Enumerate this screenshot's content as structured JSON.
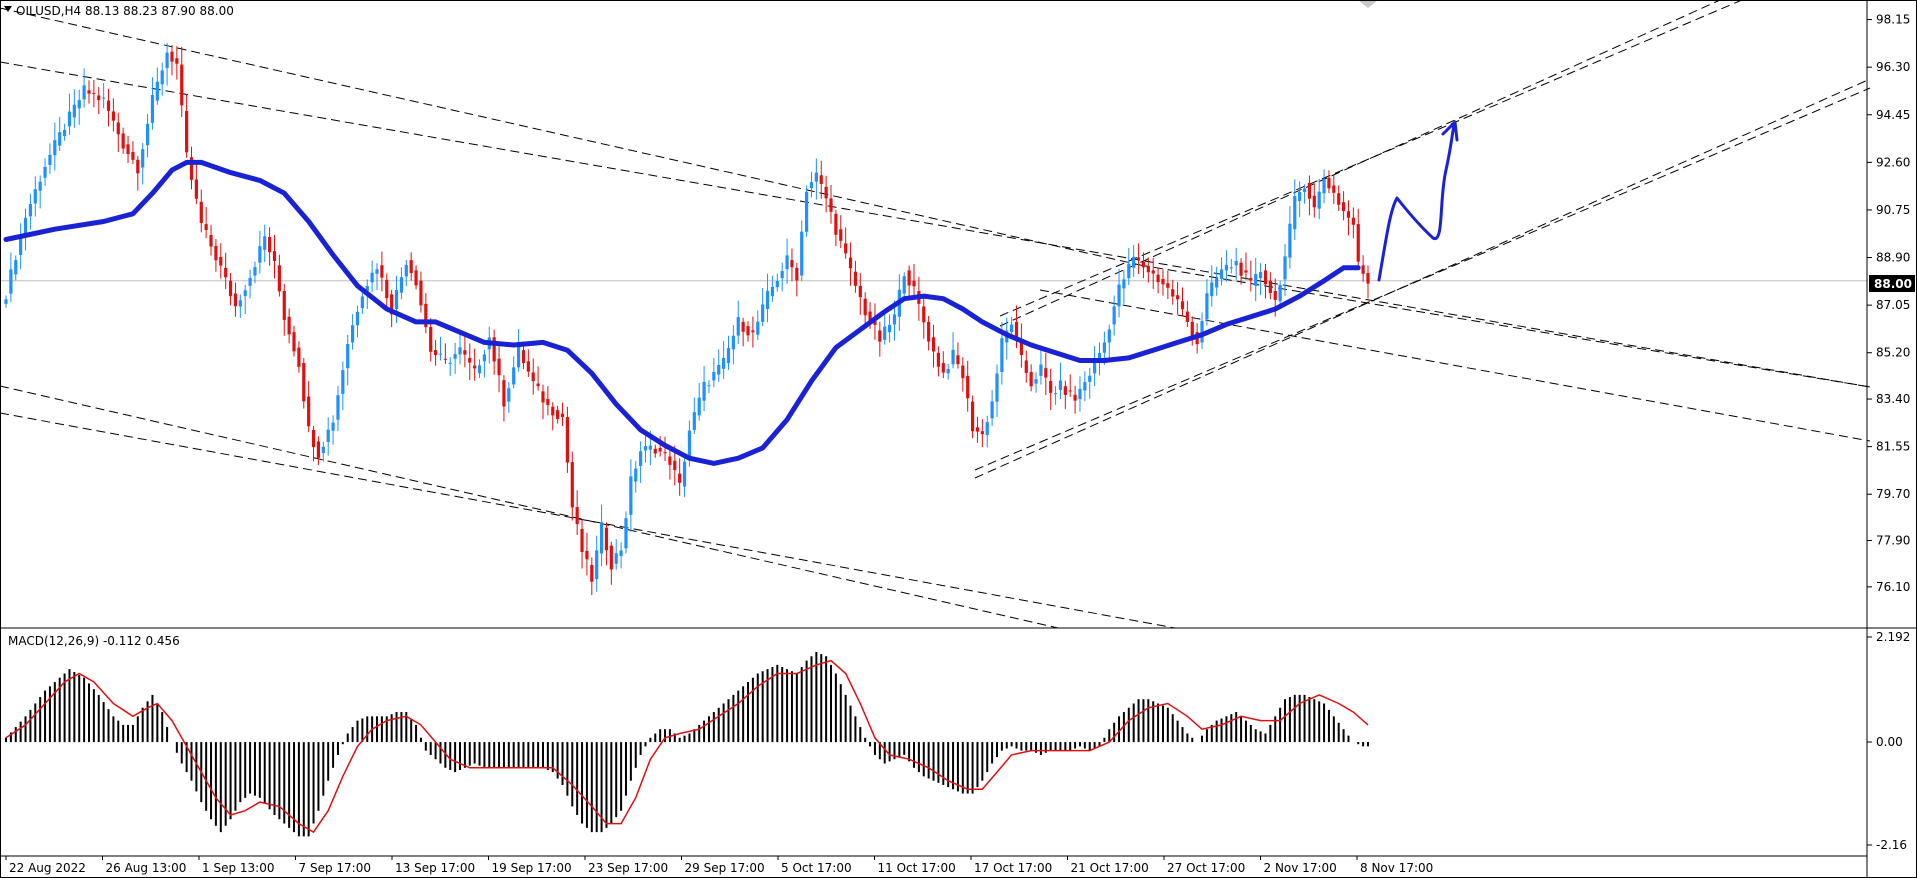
{
  "header": {
    "symbol_line": "OILUSD,H4  88.13 88.23 87.90 88.00"
  },
  "macd": {
    "label": "MACD(12,26,9) -0.112 0.456",
    "scale": [
      "2.192",
      "0.00",
      "-2.16"
    ]
  },
  "current_price": "88.00",
  "colors": {
    "bull": "#1e90ff",
    "bear": "#e01010",
    "ma": "#1a22d6",
    "signal": "#e01010",
    "histogram": "#000000"
  },
  "chart_data": {
    "type": "candlestick",
    "symbol": "OILUSD",
    "timeframe": "H4",
    "ohlc_last": {
      "open": 88.13,
      "high": 88.23,
      "low": 87.9,
      "close": 88.0
    },
    "ylim": [
      75.2,
      98.6
    ],
    "y_ticks": [
      "98.15",
      "96.30",
      "94.45",
      "92.60",
      "90.75",
      "88.90",
      "87.05",
      "85.20",
      "83.40",
      "81.55",
      "79.70",
      "77.90",
      "76.10"
    ],
    "x_ticks": [
      "22 Aug 2022",
      "26 Aug 13:00",
      "1 Sep 13:00",
      "7 Sep 17:00",
      "13 Sep 17:00",
      "19 Sep 17:00",
      "23 Sep 17:00",
      "29 Sep 17:00",
      "5 Oct 17:00",
      "11 Oct 17:00",
      "17 Oct 17:00",
      "21 Oct 17:00",
      "27 Oct 17:00",
      "2 Nov 17:00",
      "8 Nov 17:00"
    ],
    "price_path": [
      [
        0,
        87.5
      ],
      [
        4,
        90.5
      ],
      [
        8,
        92.5
      ],
      [
        12,
        94.0
      ],
      [
        16,
        95.4
      ],
      [
        20,
        95.0
      ],
      [
        24,
        93.3
      ],
      [
        27,
        92.4
      ],
      [
        30,
        95.0
      ],
      [
        33,
        96.9
      ],
      [
        35,
        96.4
      ],
      [
        37,
        92.8
      ],
      [
        40,
        90.2
      ],
      [
        44,
        88.5
      ],
      [
        47,
        87.0
      ],
      [
        50,
        88.2
      ],
      [
        53,
        89.7
      ],
      [
        55,
        88.6
      ],
      [
        57,
        86.6
      ],
      [
        60,
        84.8
      ],
      [
        62,
        82.2
      ],
      [
        64,
        81.3
      ],
      [
        67,
        82.6
      ],
      [
        70,
        85.6
      ],
      [
        73,
        87.6
      ],
      [
        76,
        88.6
      ],
      [
        79,
        86.9
      ],
      [
        82,
        88.8
      ],
      [
        84,
        88.0
      ],
      [
        87,
        85.3
      ],
      [
        90,
        84.8
      ],
      [
        93,
        85.3
      ],
      [
        96,
        84.4
      ],
      [
        99,
        85.8
      ],
      [
        102,
        83.3
      ],
      [
        105,
        85.3
      ],
      [
        108,
        84.0
      ],
      [
        111,
        83.1
      ],
      [
        114,
        82.7
      ],
      [
        116,
        79.2
      ],
      [
        118,
        77.5
      ],
      [
        120,
        76.4
      ],
      [
        122,
        78.4
      ],
      [
        124,
        77.0
      ],
      [
        126,
        77.6
      ],
      [
        128,
        80.2
      ],
      [
        130,
        81.4
      ],
      [
        133,
        81.5
      ],
      [
        136,
        81.0
      ],
      [
        138,
        80.0
      ],
      [
        140,
        82.2
      ],
      [
        143,
        83.9
      ],
      [
        147,
        84.8
      ],
      [
        150,
        86.4
      ],
      [
        153,
        85.9
      ],
      [
        156,
        87.4
      ],
      [
        160,
        88.8
      ],
      [
        162,
        88.2
      ],
      [
        164,
        91.6
      ],
      [
        166,
        92.1
      ],
      [
        168,
        91.2
      ],
      [
        170,
        90.0
      ],
      [
        172,
        88.9
      ],
      [
        174,
        87.8
      ],
      [
        176,
        86.8
      ],
      [
        179,
        85.7
      ],
      [
        182,
        86.6
      ],
      [
        184,
        88.4
      ],
      [
        186,
        87.6
      ],
      [
        188,
        86.4
      ],
      [
        190,
        85.2
      ],
      [
        192,
        84.4
      ],
      [
        194,
        85.1
      ],
      [
        196,
        84.3
      ],
      [
        198,
        82.3
      ],
      [
        200,
        82.0
      ],
      [
        202,
        83.3
      ],
      [
        204,
        85.6
      ],
      [
        206,
        86.4
      ],
      [
        208,
        84.9
      ],
      [
        210,
        84.0
      ],
      [
        212,
        84.6
      ],
      [
        214,
        83.6
      ],
      [
        216,
        83.9
      ],
      [
        219,
        83.4
      ],
      [
        222,
        84.4
      ],
      [
        225,
        85.6
      ],
      [
        228,
        87.7
      ],
      [
        231,
        88.9
      ],
      [
        234,
        88.4
      ],
      [
        237,
        87.9
      ],
      [
        240,
        87.2
      ],
      [
        242,
        86.4
      ],
      [
        244,
        85.6
      ],
      [
        246,
        87.4
      ],
      [
        249,
        88.4
      ],
      [
        252,
        88.7
      ],
      [
        255,
        87.8
      ],
      [
        257,
        88.4
      ],
      [
        260,
        87.2
      ],
      [
        262,
        88.9
      ],
      [
        264,
        91.1
      ],
      [
        266,
        91.8
      ],
      [
        268,
        90.8
      ],
      [
        270,
        92.0
      ],
      [
        272,
        91.4
      ],
      [
        274,
        90.7
      ],
      [
        276,
        90.2
      ],
      [
        277,
        88.6
      ],
      [
        279,
        88.0
      ]
    ],
    "moving_average": [
      [
        0,
        89.6
      ],
      [
        10,
        90.0
      ],
      [
        20,
        90.3
      ],
      [
        26,
        90.6
      ],
      [
        30,
        91.4
      ],
      [
        34,
        92.3
      ],
      [
        37,
        92.6
      ],
      [
        40,
        92.6
      ],
      [
        46,
        92.2
      ],
      [
        52,
        91.9
      ],
      [
        57,
        91.4
      ],
      [
        62,
        90.3
      ],
      [
        67,
        89.0
      ],
      [
        72,
        87.8
      ],
      [
        78,
        86.9
      ],
      [
        84,
        86.4
      ],
      [
        88,
        86.4
      ],
      [
        93,
        86.0
      ],
      [
        98,
        85.6
      ],
      [
        104,
        85.5
      ],
      [
        110,
        85.6
      ],
      [
        115,
        85.3
      ],
      [
        120,
        84.4
      ],
      [
        125,
        83.2
      ],
      [
        130,
        82.2
      ],
      [
        135,
        81.6
      ],
      [
        140,
        81.1
      ],
      [
        145,
        80.9
      ],
      [
        150,
        81.1
      ],
      [
        155,
        81.5
      ],
      [
        160,
        82.6
      ],
      [
        165,
        84.1
      ],
      [
        170,
        85.4
      ],
      [
        175,
        86.1
      ],
      [
        180,
        86.8
      ],
      [
        184,
        87.3
      ],
      [
        188,
        87.4
      ],
      [
        192,
        87.3
      ],
      [
        196,
        86.9
      ],
      [
        200,
        86.4
      ],
      [
        205,
        85.9
      ],
      [
        210,
        85.5
      ],
      [
        215,
        85.2
      ],
      [
        220,
        84.9
      ],
      [
        225,
        84.9
      ],
      [
        230,
        85.0
      ],
      [
        235,
        85.3
      ],
      [
        240,
        85.6
      ],
      [
        245,
        85.9
      ],
      [
        250,
        86.3
      ],
      [
        255,
        86.6
      ],
      [
        260,
        86.9
      ],
      [
        265,
        87.4
      ],
      [
        270,
        88.0
      ],
      [
        274,
        88.5
      ],
      [
        277,
        88.5
      ]
    ],
    "macd_histogram": [
      [
        0,
        0.1
      ],
      [
        4,
        0.6
      ],
      [
        8,
        1.2
      ],
      [
        11,
        1.5
      ],
      [
        13,
        1.7
      ],
      [
        16,
        1.5
      ],
      [
        19,
        1.1
      ],
      [
        22,
        0.6
      ],
      [
        24,
        0.4
      ],
      [
        26,
        0.4
      ],
      [
        28,
        0.8
      ],
      [
        30,
        1.1
      ],
      [
        32,
        0.7
      ],
      [
        34,
        0.0
      ],
      [
        36,
        -0.5
      ],
      [
        38,
        -0.9
      ],
      [
        40,
        -1.4
      ],
      [
        42,
        -1.8
      ],
      [
        44,
        -2.1
      ],
      [
        46,
        -1.8
      ],
      [
        48,
        -1.4
      ],
      [
        50,
        -1.2
      ],
      [
        52,
        -1.3
      ],
      [
        55,
        -1.7
      ],
      [
        58,
        -2.0
      ],
      [
        60,
        -2.2
      ],
      [
        62,
        -2.2
      ],
      [
        64,
        -1.6
      ],
      [
        66,
        -0.9
      ],
      [
        68,
        -0.3
      ],
      [
        70,
        0.2
      ],
      [
        72,
        0.5
      ],
      [
        74,
        0.6
      ],
      [
        76,
        0.6
      ],
      [
        78,
        0.6
      ],
      [
        80,
        0.7
      ],
      [
        82,
        0.7
      ],
      [
        84,
        0.4
      ],
      [
        86,
        -0.2
      ],
      [
        88,
        -0.4
      ],
      [
        90,
        -0.6
      ],
      [
        92,
        -0.7
      ],
      [
        94,
        -0.6
      ],
      [
        96,
        -0.5
      ],
      [
        98,
        -0.6
      ],
      [
        100,
        -0.6
      ],
      [
        102,
        -0.6
      ],
      [
        104,
        -0.6
      ],
      [
        106,
        -0.6
      ],
      [
        108,
        -0.6
      ],
      [
        110,
        -0.6
      ],
      [
        112,
        -0.7
      ],
      [
        114,
        -1.0
      ],
      [
        116,
        -1.5
      ],
      [
        118,
        -1.9
      ],
      [
        120,
        -2.1
      ],
      [
        122,
        -2.1
      ],
      [
        124,
        -1.9
      ],
      [
        126,
        -1.6
      ],
      [
        128,
        -0.9
      ],
      [
        130,
        -0.3
      ],
      [
        132,
        0.1
      ],
      [
        134,
        0.3
      ],
      [
        136,
        0.3
      ],
      [
        138,
        0.1
      ],
      [
        140,
        0.2
      ],
      [
        143,
        0.5
      ],
      [
        146,
        0.8
      ],
      [
        150,
        1.2
      ],
      [
        154,
        1.6
      ],
      [
        158,
        1.8
      ],
      [
        160,
        1.7
      ],
      [
        162,
        1.6
      ],
      [
        164,
        1.9
      ],
      [
        166,
        2.1
      ],
      [
        168,
        2.0
      ],
      [
        170,
        1.6
      ],
      [
        172,
        1.1
      ],
      [
        174,
        0.6
      ],
      [
        176,
        0.1
      ],
      [
        178,
        -0.3
      ],
      [
        180,
        -0.5
      ],
      [
        182,
        -0.4
      ],
      [
        184,
        -0.3
      ],
      [
        186,
        -0.6
      ],
      [
        188,
        -0.8
      ],
      [
        190,
        -0.9
      ],
      [
        192,
        -1.0
      ],
      [
        194,
        -1.1
      ],
      [
        196,
        -1.2
      ],
      [
        198,
        -1.2
      ],
      [
        200,
        -0.9
      ],
      [
        202,
        -0.5
      ],
      [
        204,
        -0.2
      ],
      [
        206,
        -0.1
      ],
      [
        208,
        -0.2
      ],
      [
        210,
        -0.2
      ],
      [
        212,
        -0.3
      ],
      [
        214,
        -0.2
      ],
      [
        216,
        -0.2
      ],
      [
        218,
        -0.2
      ],
      [
        220,
        -0.1
      ],
      [
        222,
        -0.2
      ],
      [
        224,
        -0.1
      ],
      [
        226,
        0.3
      ],
      [
        228,
        0.6
      ],
      [
        230,
        0.8
      ],
      [
        232,
        1.0
      ],
      [
        234,
        1.0
      ],
      [
        236,
        0.9
      ],
      [
        238,
        0.8
      ],
      [
        240,
        0.5
      ],
      [
        242,
        0.2
      ],
      [
        244,
        0.0
      ],
      [
        246,
        0.3
      ],
      [
        248,
        0.5
      ],
      [
        250,
        0.6
      ],
      [
        252,
        0.7
      ],
      [
        254,
        0.5
      ],
      [
        256,
        0.3
      ],
      [
        258,
        0.2
      ],
      [
        260,
        0.6
      ],
      [
        262,
        1.0
      ],
      [
        264,
        1.1
      ],
      [
        266,
        1.1
      ],
      [
        268,
        1.0
      ],
      [
        270,
        0.9
      ],
      [
        272,
        0.6
      ],
      [
        274,
        0.3
      ],
      [
        276,
        0.0
      ],
      [
        278,
        -0.1
      ]
    ],
    "macd_signal": [
      [
        0,
        0.1
      ],
      [
        4,
        0.4
      ],
      [
        8,
        0.9
      ],
      [
        12,
        1.4
      ],
      [
        15,
        1.6
      ],
      [
        18,
        1.4
      ],
      [
        22,
        0.9
      ],
      [
        26,
        0.6
      ],
      [
        29,
        0.8
      ],
      [
        31,
        0.9
      ],
      [
        34,
        0.5
      ],
      [
        37,
        -0.1
      ],
      [
        40,
        -0.7
      ],
      [
        43,
        -1.3
      ],
      [
        46,
        -1.7
      ],
      [
        49,
        -1.6
      ],
      [
        52,
        -1.4
      ],
      [
        56,
        -1.5
      ],
      [
        60,
        -1.9
      ],
      [
        63,
        -2.1
      ],
      [
        66,
        -1.6
      ],
      [
        69,
        -0.8
      ],
      [
        72,
        -0.1
      ],
      [
        75,
        0.3
      ],
      [
        78,
        0.5
      ],
      [
        82,
        0.6
      ],
      [
        85,
        0.4
      ],
      [
        88,
        0.0
      ],
      [
        91,
        -0.4
      ],
      [
        95,
        -0.6
      ],
      [
        100,
        -0.6
      ],
      [
        106,
        -0.6
      ],
      [
        112,
        -0.6
      ],
      [
        116,
        -1.0
      ],
      [
        120,
        -1.5
      ],
      [
        123,
        -1.9
      ],
      [
        126,
        -1.9
      ],
      [
        129,
        -1.3
      ],
      [
        132,
        -0.4
      ],
      [
        135,
        0.1
      ],
      [
        138,
        0.2
      ],
      [
        142,
        0.3
      ],
      [
        146,
        0.6
      ],
      [
        150,
        0.9
      ],
      [
        154,
        1.3
      ],
      [
        158,
        1.6
      ],
      [
        162,
        1.6
      ],
      [
        166,
        1.8
      ],
      [
        169,
        1.9
      ],
      [
        172,
        1.6
      ],
      [
        175,
        0.9
      ],
      [
        178,
        0.1
      ],
      [
        181,
        -0.3
      ],
      [
        185,
        -0.4
      ],
      [
        189,
        -0.6
      ],
      [
        193,
        -0.9
      ],
      [
        197,
        -1.1
      ],
      [
        200,
        -1.1
      ],
      [
        203,
        -0.7
      ],
      [
        206,
        -0.3
      ],
      [
        210,
        -0.2
      ],
      [
        216,
        -0.2
      ],
      [
        222,
        -0.2
      ],
      [
        226,
        0.0
      ],
      [
        230,
        0.5
      ],
      [
        234,
        0.8
      ],
      [
        238,
        0.9
      ],
      [
        242,
        0.6
      ],
      [
        245,
        0.3
      ],
      [
        249,
        0.4
      ],
      [
        253,
        0.6
      ],
      [
        257,
        0.5
      ],
      [
        261,
        0.5
      ],
      [
        265,
        0.9
      ],
      [
        269,
        1.1
      ],
      [
        273,
        0.9
      ],
      [
        276,
        0.7
      ],
      [
        279,
        0.4
      ]
    ],
    "macd_ylim": [
      -2.4,
      2.45
    ]
  }
}
